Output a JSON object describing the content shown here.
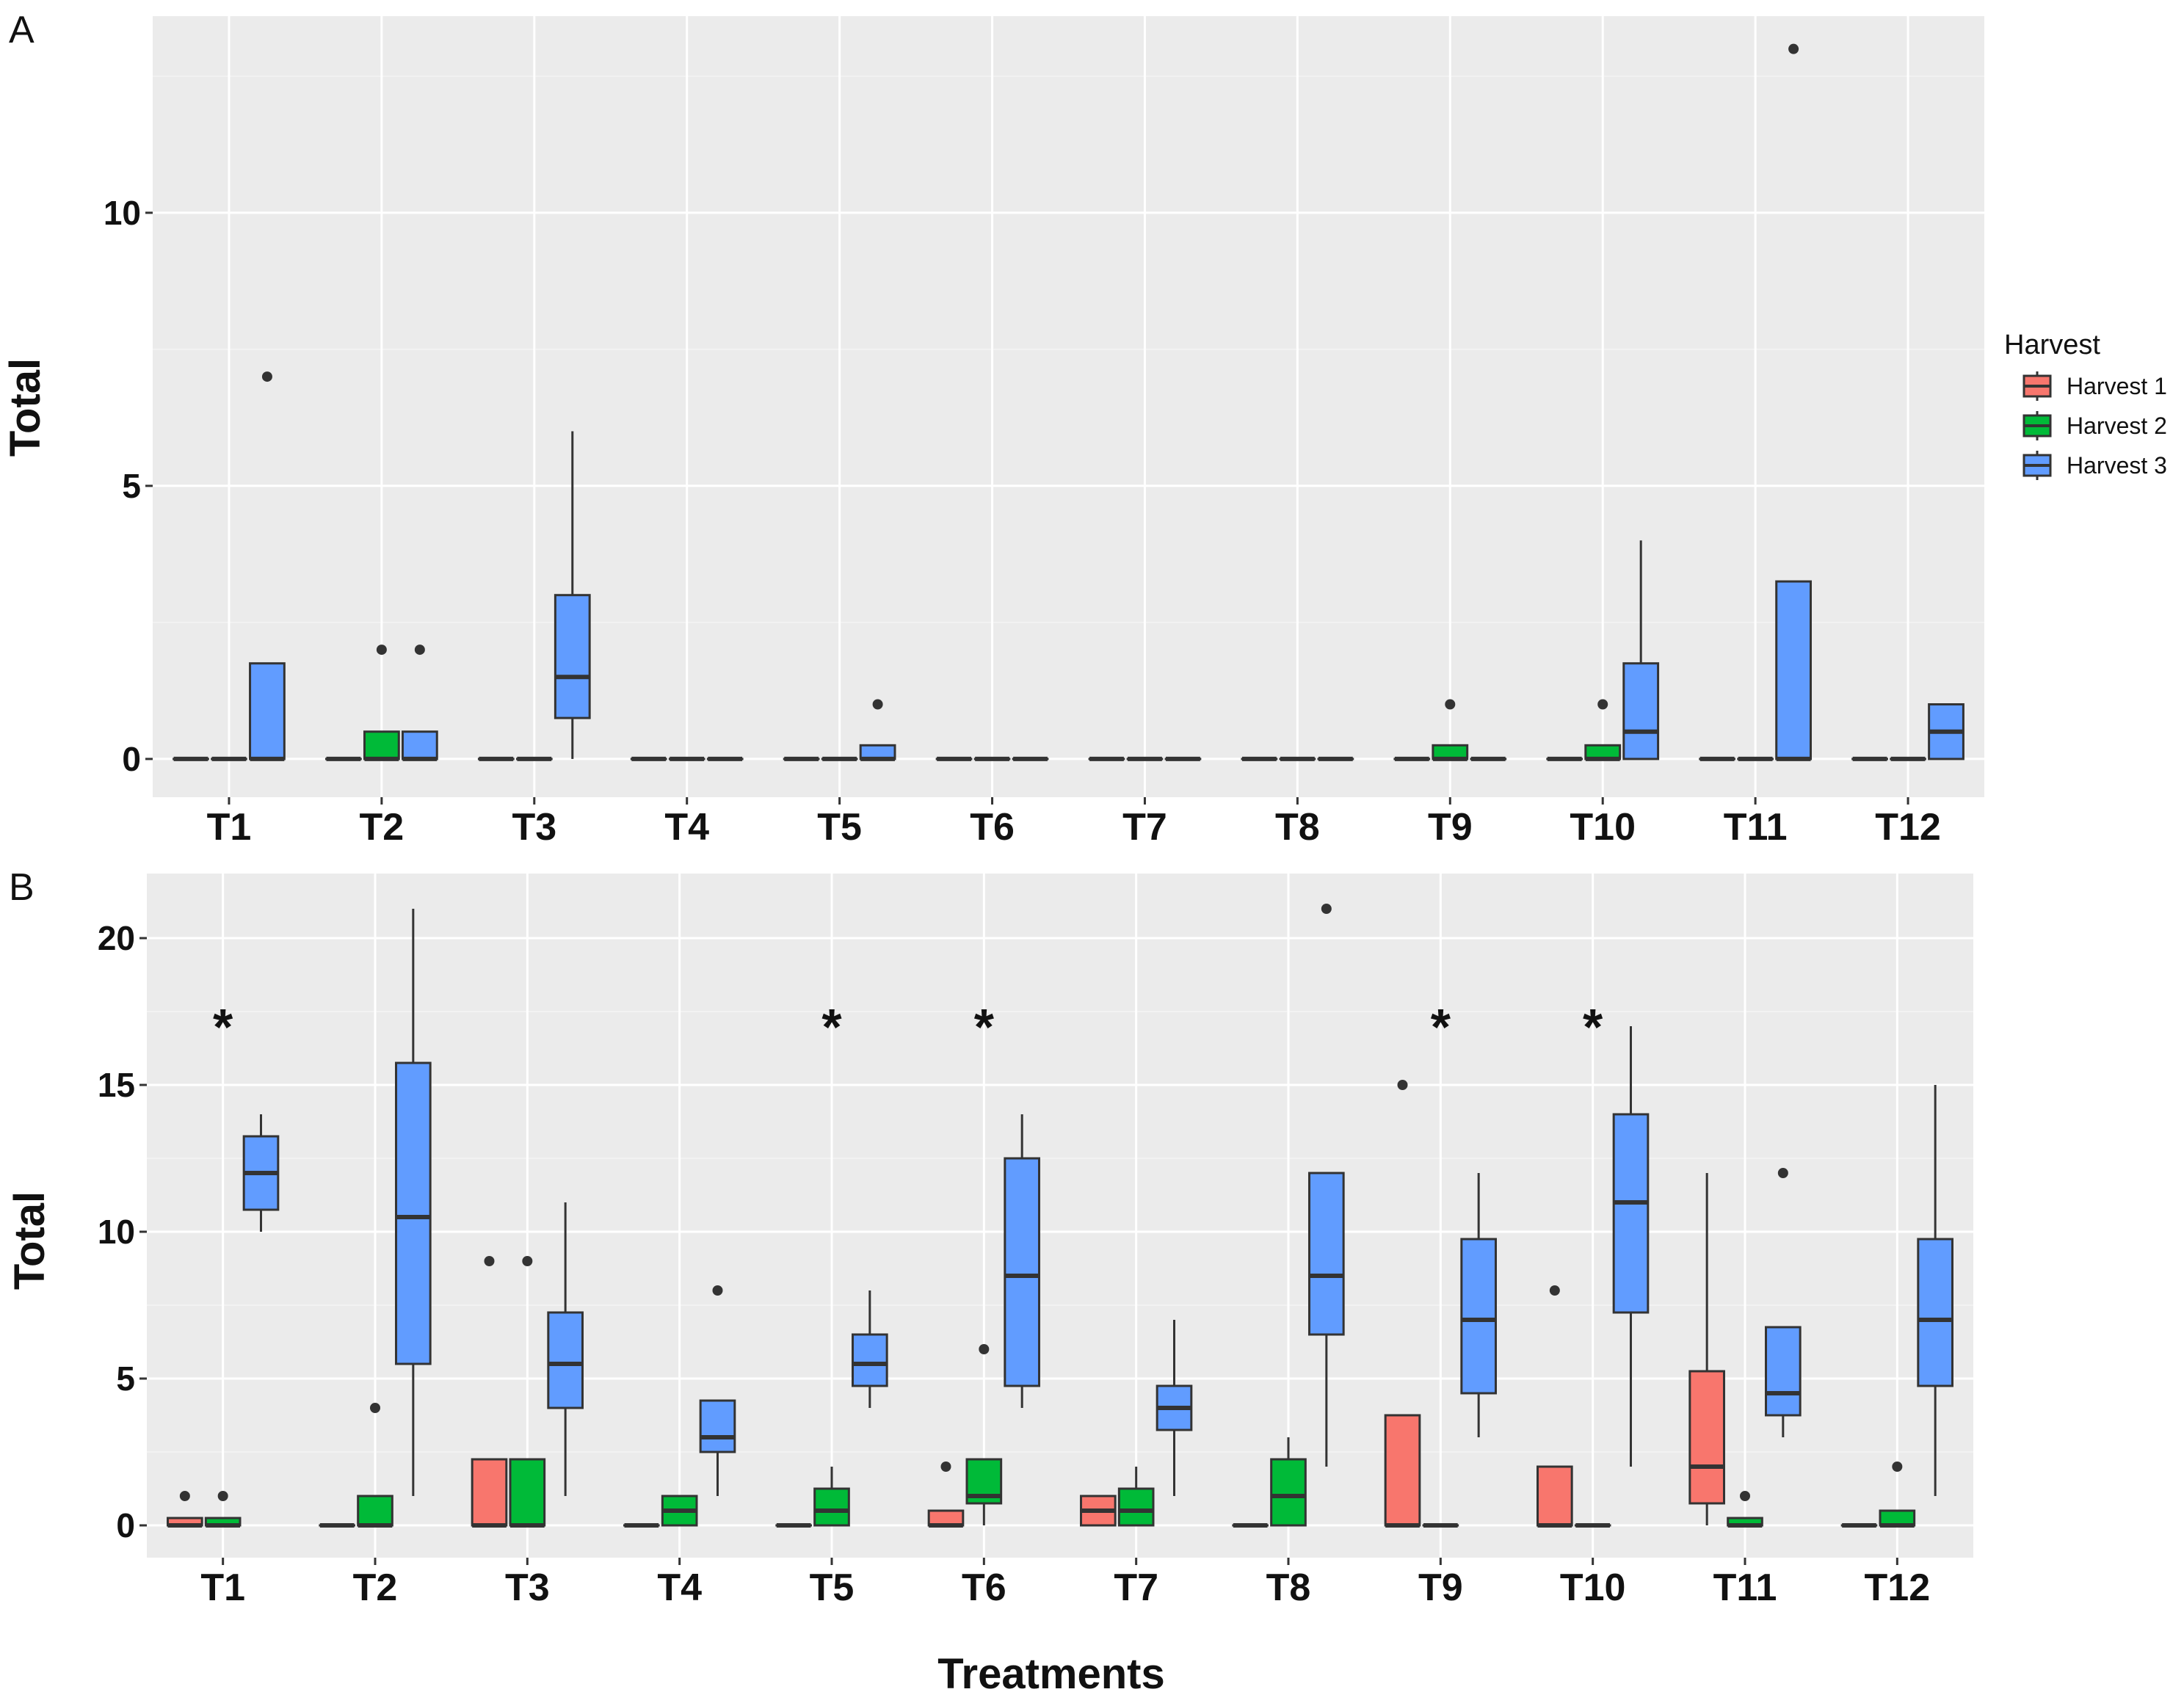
{
  "colors": {
    "panel_background": "#EBEBEB",
    "grid_major": "#FFFFFF",
    "grid_minor": "#F4F4F4",
    "box_outline": "#333333",
    "Harvest 1": "#F8766D",
    "Harvest 2": "#00BA38",
    "Harvest 3": "#619CFF"
  },
  "legend": {
    "title": "Harvest",
    "items": [
      "Harvest 1",
      "Harvest 2",
      "Harvest 3"
    ],
    "placement": "right of panel A"
  },
  "common_xlabel": "Treatments",
  "chart_data": [
    {
      "panel": "A",
      "type": "boxplot",
      "ylabel": "Total",
      "ylim": [
        -0.7,
        13.6
      ],
      "yticks": [
        0,
        5,
        10
      ],
      "grid": true,
      "categories": [
        "T1",
        "T2",
        "T3",
        "T4",
        "T5",
        "T6",
        "T7",
        "T8",
        "T9",
        "T10",
        "T11",
        "T12"
      ],
      "series": [
        {
          "name": "Harvest 1",
          "boxes": [
            {
              "min": 0,
              "q1": 0,
              "median": 0,
              "q3": 0,
              "max": 0,
              "outliers": []
            },
            {
              "min": 0,
              "q1": 0,
              "median": 0,
              "q3": 0,
              "max": 0,
              "outliers": []
            },
            {
              "min": 0,
              "q1": 0,
              "median": 0,
              "q3": 0,
              "max": 0,
              "outliers": []
            },
            {
              "min": 0,
              "q1": 0,
              "median": 0,
              "q3": 0,
              "max": 0,
              "outliers": []
            },
            {
              "min": 0,
              "q1": 0,
              "median": 0,
              "q3": 0,
              "max": 0,
              "outliers": []
            },
            {
              "min": 0,
              "q1": 0,
              "median": 0,
              "q3": 0,
              "max": 0,
              "outliers": []
            },
            {
              "min": 0,
              "q1": 0,
              "median": 0,
              "q3": 0,
              "max": 0,
              "outliers": []
            },
            {
              "min": 0,
              "q1": 0,
              "median": 0,
              "q3": 0,
              "max": 0,
              "outliers": []
            },
            {
              "min": 0,
              "q1": 0,
              "median": 0,
              "q3": 0,
              "max": 0,
              "outliers": []
            },
            {
              "min": 0,
              "q1": 0,
              "median": 0,
              "q3": 0,
              "max": 0,
              "outliers": []
            },
            {
              "min": 0,
              "q1": 0,
              "median": 0,
              "q3": 0,
              "max": 0,
              "outliers": []
            },
            {
              "min": 0,
              "q1": 0,
              "median": 0,
              "q3": 0,
              "max": 0,
              "outliers": []
            }
          ]
        },
        {
          "name": "Harvest 2",
          "boxes": [
            {
              "min": 0,
              "q1": 0,
              "median": 0,
              "q3": 0,
              "max": 0,
              "outliers": []
            },
            {
              "min": 0,
              "q1": 0,
              "median": 0,
              "q3": 0.5,
              "max": 0.5,
              "outliers": [
                2
              ]
            },
            {
              "min": 0,
              "q1": 0,
              "median": 0,
              "q3": 0,
              "max": 0,
              "outliers": []
            },
            {
              "min": 0,
              "q1": 0,
              "median": 0,
              "q3": 0,
              "max": 0,
              "outliers": []
            },
            {
              "min": 0,
              "q1": 0,
              "median": 0,
              "q3": 0,
              "max": 0,
              "outliers": []
            },
            {
              "min": 0,
              "q1": 0,
              "median": 0,
              "q3": 0,
              "max": 0,
              "outliers": []
            },
            {
              "min": 0,
              "q1": 0,
              "median": 0,
              "q3": 0,
              "max": 0,
              "outliers": []
            },
            {
              "min": 0,
              "q1": 0,
              "median": 0,
              "q3": 0,
              "max": 0,
              "outliers": []
            },
            {
              "min": 0,
              "q1": 0,
              "median": 0,
              "q3": 0.25,
              "max": 0.25,
              "outliers": [
                1
              ]
            },
            {
              "min": 0,
              "q1": 0,
              "median": 0,
              "q3": 0.25,
              "max": 0.25,
              "outliers": [
                1
              ]
            },
            {
              "min": 0,
              "q1": 0,
              "median": 0,
              "q3": 0,
              "max": 0,
              "outliers": []
            },
            {
              "min": 0,
              "q1": 0,
              "median": 0,
              "q3": 0,
              "max": 0,
              "outliers": []
            }
          ]
        },
        {
          "name": "Harvest 3",
          "boxes": [
            {
              "min": 0,
              "q1": 0,
              "median": 0,
              "q3": 1.75,
              "max": 1.75,
              "outliers": [
                7
              ]
            },
            {
              "min": 0,
              "q1": 0,
              "median": 0,
              "q3": 0.5,
              "max": 0.5,
              "outliers": [
                2
              ]
            },
            {
              "min": 0,
              "q1": 0.75,
              "median": 1.5,
              "q3": 3,
              "max": 6,
              "outliers": []
            },
            {
              "min": 0,
              "q1": 0,
              "median": 0,
              "q3": 0,
              "max": 0,
              "outliers": []
            },
            {
              "min": 0,
              "q1": 0,
              "median": 0,
              "q3": 0.25,
              "max": 0.25,
              "outliers": [
                1
              ]
            },
            {
              "min": 0,
              "q1": 0,
              "median": 0,
              "q3": 0,
              "max": 0,
              "outliers": []
            },
            {
              "min": 0,
              "q1": 0,
              "median": 0,
              "q3": 0,
              "max": 0,
              "outliers": []
            },
            {
              "min": 0,
              "q1": 0,
              "median": 0,
              "q3": 0,
              "max": 0,
              "outliers": []
            },
            {
              "min": 0,
              "q1": 0,
              "median": 0,
              "q3": 0,
              "max": 0,
              "outliers": []
            },
            {
              "min": 0,
              "q1": 0,
              "median": 0.5,
              "q3": 1.75,
              "max": 4,
              "outliers": []
            },
            {
              "min": 0,
              "q1": 0,
              "median": 0,
              "q3": 3.25,
              "max": 3.25,
              "outliers": [
                13
              ]
            },
            {
              "min": 0,
              "q1": 0,
              "median": 0.5,
              "q3": 1,
              "max": 1,
              "outliers": []
            }
          ]
        }
      ],
      "annotations": []
    },
    {
      "panel": "B",
      "type": "boxplot",
      "ylabel": "Total",
      "xlabel": "Treatments",
      "ylim": [
        -1.1,
        22.2
      ],
      "yticks": [
        0,
        5,
        10,
        15,
        20
      ],
      "grid": true,
      "categories": [
        "T1",
        "T2",
        "T3",
        "T4",
        "T5",
        "T6",
        "T7",
        "T8",
        "T9",
        "T10",
        "T11",
        "T12"
      ],
      "series": [
        {
          "name": "Harvest 1",
          "boxes": [
            {
              "min": 0,
              "q1": 0,
              "median": 0,
              "q3": 0.25,
              "max": 0.25,
              "outliers": [
                1
              ]
            },
            {
              "min": 0,
              "q1": 0,
              "median": 0,
              "q3": 0,
              "max": 0,
              "outliers": []
            },
            {
              "min": 0,
              "q1": 0,
              "median": 0,
              "q3": 2.25,
              "max": 2.25,
              "outliers": [
                9
              ]
            },
            {
              "min": 0,
              "q1": 0,
              "median": 0,
              "q3": 0,
              "max": 0,
              "outliers": []
            },
            {
              "min": 0,
              "q1": 0,
              "median": 0,
              "q3": 0,
              "max": 0,
              "outliers": []
            },
            {
              "min": 0,
              "q1": 0,
              "median": 0,
              "q3": 0.5,
              "max": 0.5,
              "outliers": [
                2
              ]
            },
            {
              "min": 0,
              "q1": 0,
              "median": 0.5,
              "q3": 1,
              "max": 1,
              "outliers": []
            },
            {
              "min": 0,
              "q1": 0,
              "median": 0,
              "q3": 0,
              "max": 0,
              "outliers": []
            },
            {
              "min": 0,
              "q1": 0,
              "median": 0,
              "q3": 3.75,
              "max": 3.75,
              "outliers": [
                15
              ]
            },
            {
              "min": 0,
              "q1": 0,
              "median": 0,
              "q3": 2,
              "max": 2,
              "outliers": [
                8
              ]
            },
            {
              "min": 0,
              "q1": 0.75,
              "median": 2,
              "q3": 5.25,
              "max": 12,
              "outliers": []
            },
            {
              "min": 0,
              "q1": 0,
              "median": 0,
              "q3": 0,
              "max": 0,
              "outliers": []
            }
          ]
        },
        {
          "name": "Harvest 2",
          "boxes": [
            {
              "min": 0,
              "q1": 0,
              "median": 0,
              "q3": 0.25,
              "max": 0.25,
              "outliers": [
                1
              ]
            },
            {
              "min": 0,
              "q1": 0,
              "median": 0,
              "q3": 1,
              "max": 1,
              "outliers": [
                4
              ]
            },
            {
              "min": 0,
              "q1": 0,
              "median": 0,
              "q3": 2.25,
              "max": 2.25,
              "outliers": [
                9
              ]
            },
            {
              "min": 0,
              "q1": 0,
              "median": 0.5,
              "q3": 1,
              "max": 1,
              "outliers": []
            },
            {
              "min": 0,
              "q1": 0,
              "median": 0.5,
              "q3": 1.25,
              "max": 2,
              "outliers": []
            },
            {
              "min": 0,
              "q1": 0.75,
              "median": 1,
              "q3": 2.25,
              "max": 2.25,
              "outliers": [
                6
              ]
            },
            {
              "min": 0,
              "q1": 0,
              "median": 0.5,
              "q3": 1.25,
              "max": 2,
              "outliers": []
            },
            {
              "min": 0,
              "q1": 0,
              "median": 1,
              "q3": 2.25,
              "max": 3,
              "outliers": []
            },
            {
              "min": 0,
              "q1": 0,
              "median": 0,
              "q3": 0,
              "max": 0,
              "outliers": []
            },
            {
              "min": 0,
              "q1": 0,
              "median": 0,
              "q3": 0,
              "max": 0,
              "outliers": []
            },
            {
              "min": 0,
              "q1": 0,
              "median": 0,
              "q3": 0.25,
              "max": 0.25,
              "outliers": [
                1
              ]
            },
            {
              "min": 0,
              "q1": 0,
              "median": 0,
              "q3": 0.5,
              "max": 0.5,
              "outliers": [
                2
              ]
            }
          ]
        },
        {
          "name": "Harvest 3",
          "boxes": [
            {
              "min": 10,
              "q1": 10.75,
              "median": 12,
              "q3": 13.25,
              "max": 14,
              "outliers": []
            },
            {
              "min": 1,
              "q1": 5.5,
              "median": 10.5,
              "q3": 15.75,
              "max": 21,
              "outliers": []
            },
            {
              "min": 1,
              "q1": 4,
              "median": 5.5,
              "q3": 7.25,
              "max": 11,
              "outliers": []
            },
            {
              "min": 1,
              "q1": 2.5,
              "median": 3,
              "q3": 4.25,
              "max": 4.25,
              "outliers": [
                8
              ]
            },
            {
              "min": 4,
              "q1": 4.75,
              "median": 5.5,
              "q3": 6.5,
              "max": 8,
              "outliers": []
            },
            {
              "min": 4,
              "q1": 4.75,
              "median": 8.5,
              "q3": 12.5,
              "max": 14,
              "outliers": []
            },
            {
              "min": 1,
              "q1": 3.25,
              "median": 4,
              "q3": 4.75,
              "max": 7,
              "outliers": []
            },
            {
              "min": 2,
              "q1": 6.5,
              "median": 8.5,
              "q3": 12,
              "max": 12,
              "outliers": [
                21
              ]
            },
            {
              "min": 3,
              "q1": 4.5,
              "median": 7,
              "q3": 9.75,
              "max": 12,
              "outliers": []
            },
            {
              "min": 2,
              "q1": 7.25,
              "median": 11,
              "q3": 14,
              "max": 17,
              "outliers": []
            },
            {
              "min": 3,
              "q1": 3.75,
              "median": 4.5,
              "q3": 6.75,
              "max": 6.75,
              "outliers": [
                12
              ]
            },
            {
              "min": 1,
              "q1": 4.75,
              "median": 7,
              "q3": 9.75,
              "max": 15,
              "outliers": []
            }
          ]
        }
      ],
      "annotations": [
        {
          "category": "T1",
          "text": "*",
          "y": 17.5
        },
        {
          "category": "T5",
          "text": "*",
          "y": 17.5
        },
        {
          "category": "T6",
          "text": "*",
          "y": 17.5
        },
        {
          "category": "T9",
          "text": "*",
          "y": 17.5
        },
        {
          "category": "T10",
          "text": "*",
          "y": 17.5
        }
      ]
    }
  ]
}
